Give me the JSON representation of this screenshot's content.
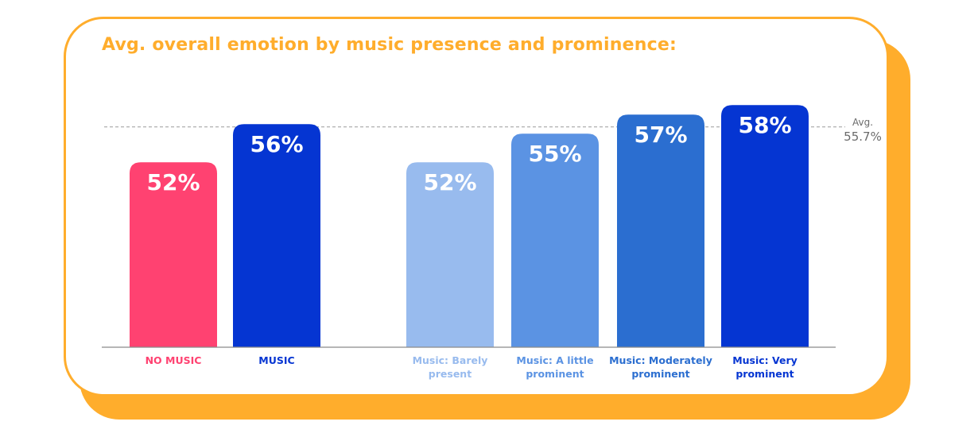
{
  "chart_data": {
    "type": "bar",
    "title": "Avg. overall emotion by music presence and prominence:",
    "xlabel": "",
    "ylabel": "",
    "ylim": [
      0,
      60
    ],
    "grid": false,
    "unit": "%",
    "categories": [
      [
        "NO MUSIC"
      ],
      [
        "MUSIC"
      ],
      [
        "Music: Barely",
        "present"
      ],
      [
        "Music: A little",
        "prominent"
      ],
      [
        "Music: Moderately",
        "prominent"
      ],
      [
        "Music: Very",
        "prominent"
      ]
    ],
    "values": [
      52,
      56,
      52,
      55,
      57,
      58
    ],
    "value_labels": [
      "52%",
      "56%",
      "52%",
      "55%",
      "57%",
      "58%"
    ],
    "colors": [
      "#ff4271",
      "#0535d2",
      "#98bbee",
      "#5b93e3",
      "#2b6ed0",
      "#0535d2"
    ],
    "label_colors": [
      "#ff4271",
      "#0535d2",
      "#98bbee",
      "#5b93e3",
      "#2b6ed0",
      "#0535d2"
    ],
    "reference_line": {
      "label": "Avg.",
      "value_label": "55.7%",
      "value": 55.7
    }
  },
  "colors": {
    "accent": "#ffad2c",
    "axis": "#8a8a8a",
    "reference": "#9a9a9a"
  }
}
